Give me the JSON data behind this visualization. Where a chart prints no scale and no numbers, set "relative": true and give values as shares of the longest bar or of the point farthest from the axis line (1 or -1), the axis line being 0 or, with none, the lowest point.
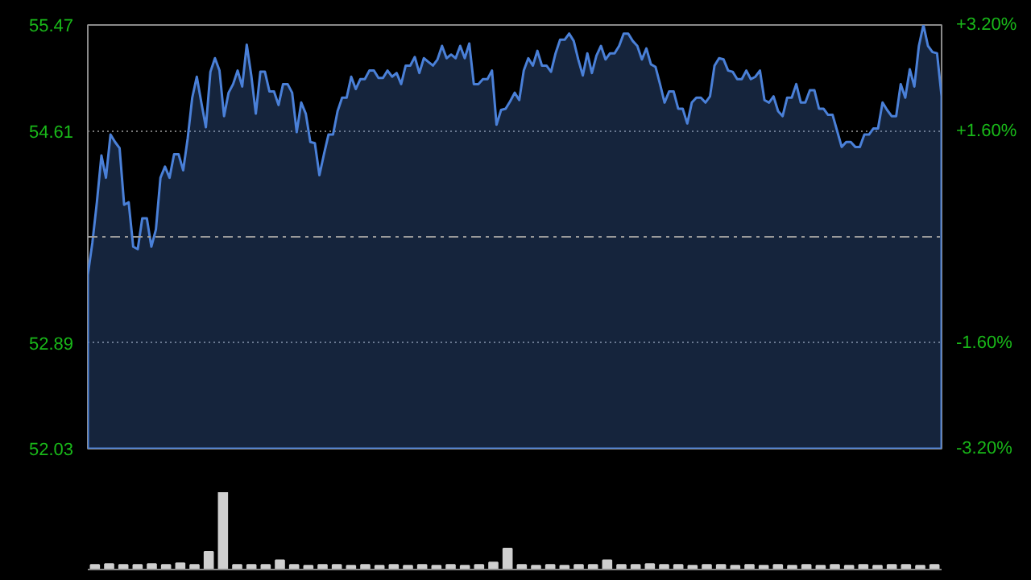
{
  "chart_data": [
    {
      "type": "area",
      "categories": [
        null,
        null,
        null,
        null,
        null,
        null,
        null,
        null,
        null,
        null,
        null,
        null,
        null,
        null,
        null,
        null,
        null,
        null,
        null,
        null,
        null,
        null,
        null,
        null,
        null,
        null,
        null,
        null,
        null,
        null,
        null,
        null,
        null,
        null,
        null,
        null,
        null,
        null,
        null,
        null,
        null,
        null,
        null,
        null,
        null,
        null,
        null,
        null,
        null,
        null,
        null,
        null,
        null,
        null,
        null,
        null,
        null,
        null,
        null,
        null,
        null,
        null,
        null,
        null,
        null,
        null,
        null,
        null,
        null,
        null,
        null,
        null,
        null,
        null,
        null,
        null,
        null,
        null,
        null,
        null,
        null,
        null,
        null,
        null,
        null,
        null,
        null,
        null,
        null,
        null,
        null,
        null,
        null,
        null,
        null,
        null,
        null,
        null,
        null,
        null,
        null,
        null,
        null,
        null,
        null,
        null,
        null,
        null,
        null,
        null,
        null,
        null,
        null,
        null,
        null,
        null,
        null,
        null,
        null,
        null,
        null,
        null,
        null,
        null,
        null,
        null,
        null,
        null,
        null,
        null,
        null,
        null,
        null,
        null,
        null,
        null,
        null,
        null,
        null,
        null,
        null,
        null,
        null,
        null,
        null,
        null,
        null,
        null,
        null,
        null,
        null,
        null,
        null,
        null,
        null,
        null,
        null,
        null,
        null,
        null,
        null,
        null,
        null,
        null,
        null,
        null,
        null,
        null,
        null,
        null,
        null,
        null,
        null,
        null,
        null,
        null,
        null,
        null,
        null,
        null,
        null,
        null,
        null,
        null,
        null,
        null,
        null,
        null,
        null
      ],
      "series": [
        {
          "color": "#4a80d8",
          "values": [
            53.44,
            53.7,
            54.03,
            54.41,
            54.23,
            54.58,
            54.52,
            54.47,
            54.01,
            54.03,
            53.67,
            53.65,
            53.9,
            53.9,
            53.67,
            53.81,
            54.23,
            54.32,
            54.23,
            54.42,
            54.42,
            54.29,
            54.55,
            54.88,
            55.05,
            54.84,
            54.64,
            55.09,
            55.2,
            55.1,
            54.73,
            54.92,
            54.99,
            55.1,
            54.97,
            55.31,
            55.06,
            54.75,
            55.09,
            55.09,
            54.93,
            54.93,
            54.82,
            54.99,
            54.99,
            54.92,
            54.6,
            54.84,
            54.75,
            54.52,
            54.51,
            54.25,
            54.42,
            54.58,
            54.58,
            54.77,
            54.88,
            54.88,
            55.05,
            54.95,
            55.03,
            55.03,
            55.1,
            55.1,
            55.04,
            55.04,
            55.1,
            55.05,
            55.08,
            54.99,
            55.14,
            55.14,
            55.21,
            55.08,
            55.2,
            55.17,
            55.14,
            55.19,
            55.3,
            55.2,
            55.23,
            55.2,
            55.3,
            55.2,
            55.32,
            54.99,
            54.99,
            55.03,
            55.03,
            55.1,
            54.66,
            54.78,
            54.79,
            54.85,
            54.92,
            54.86,
            55.1,
            55.2,
            55.14,
            55.26,
            55.14,
            55.14,
            55.09,
            55.24,
            55.35,
            55.35,
            55.4,
            55.34,
            55.19,
            55.06,
            55.24,
            55.08,
            55.22,
            55.3,
            55.19,
            55.24,
            55.24,
            55.3,
            55.4,
            55.4,
            55.34,
            55.3,
            55.19,
            55.28,
            55.15,
            55.13,
            54.99,
            54.84,
            54.93,
            54.93,
            54.79,
            54.79,
            54.67,
            54.84,
            54.88,
            54.88,
            54.84,
            54.89,
            55.14,
            55.2,
            55.19,
            55.1,
            55.09,
            55.03,
            55.03,
            55.1,
            55.03,
            55.05,
            55.1,
            54.86,
            54.84,
            54.89,
            54.77,
            54.73,
            54.88,
            54.88,
            54.99,
            54.84,
            54.84,
            54.94,
            54.94,
            54.79,
            54.79,
            54.74,
            54.74,
            54.61,
            54.48,
            54.52,
            54.52,
            54.48,
            54.48,
            54.58,
            54.58,
            54.63,
            54.63,
            54.84,
            54.78,
            54.73,
            54.73,
            54.99,
            54.88,
            55.11,
            54.97,
            55.3,
            55.47,
            55.3,
            55.25,
            55.24,
            54.89
          ]
        }
      ],
      "ylim": [
        52.03,
        55.47
      ],
      "yticks": [
        55.47,
        54.61,
        52.89,
        52.03
      ],
      "y2lim": [
        -3.2,
        3.2
      ],
      "y2ticks": [
        {
          "value": 3.2,
          "label": "+3.20%"
        },
        {
          "value": 1.6,
          "label": "+1.60%"
        },
        {
          "value": -1.6,
          "label": "-1.60%"
        },
        {
          "value": -3.2,
          "label": "-3.20%"
        }
      ],
      "ref_lines": [
        {
          "axis": "y",
          "value": 53.75,
          "color": "#9a9a9a",
          "line_style": "dashed"
        }
      ],
      "grid": true
    },
    {
      "type": "bar",
      "relative": true,
      "color": "#cfcfcf",
      "categories": [
        null,
        null,
        null,
        null,
        null,
        null,
        null,
        null,
        null,
        null,
        null,
        null,
        null,
        null,
        null,
        null,
        null,
        null,
        null,
        null,
        null,
        null,
        null,
        null,
        null,
        null,
        null,
        null,
        null,
        null,
        null,
        null,
        null,
        null,
        null,
        null,
        null,
        null,
        null,
        null,
        null,
        null,
        null,
        null,
        null,
        null,
        null,
        null,
        null,
        null,
        null,
        null,
        null,
        null,
        null,
        null,
        null,
        null,
        null,
        null
      ],
      "values": [
        0.06,
        0.07,
        0.06,
        0.06,
        0.07,
        0.06,
        0.08,
        0.06,
        0.23,
        1,
        0.06,
        0.06,
        0.06,
        0.12,
        0.06,
        0.05,
        0.06,
        0.06,
        0.05,
        0.06,
        0.05,
        0.06,
        0.05,
        0.06,
        0.05,
        0.06,
        0.05,
        0.06,
        0.09,
        0.27,
        0.06,
        0.05,
        0.06,
        0.05,
        0.06,
        0.06,
        0.12,
        0.06,
        0.06,
        0.07,
        0.06,
        0.06,
        0.05,
        0.06,
        0.06,
        0.05,
        0.06,
        0.05,
        0.06,
        0.05,
        0.06,
        0.05,
        0.06,
        0.05,
        0.06,
        0.05,
        0.06,
        0.06,
        0.05,
        0.06
      ]
    }
  ]
}
